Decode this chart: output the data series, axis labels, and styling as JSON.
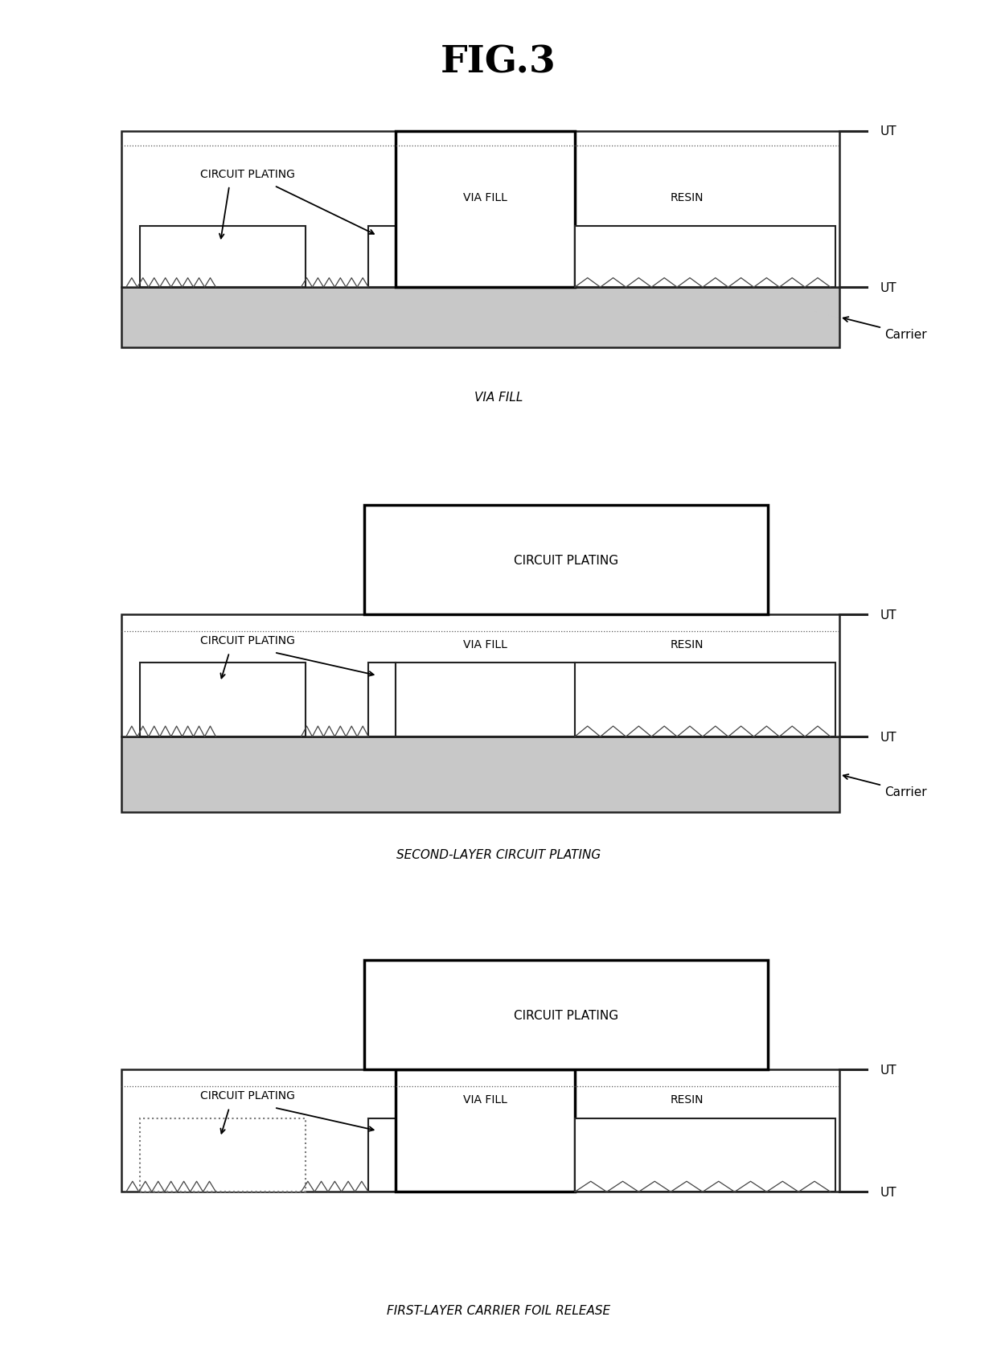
{
  "title": "FIG.3",
  "caption_G": "VIA FILL",
  "caption_H": "SECOND-LAYER CIRCUIT PLATING",
  "caption_I": "FIRST-LAYER CARRIER FOIL RELEASE",
  "bg_color": "#ffffff",
  "lw_outer": 1.8,
  "lw_inner": 1.5,
  "lw_thick": 2.5,
  "carrier_color": "#c8c8c8",
  "white": "#ffffff",
  "black": "#000000",
  "dark": "#222222"
}
